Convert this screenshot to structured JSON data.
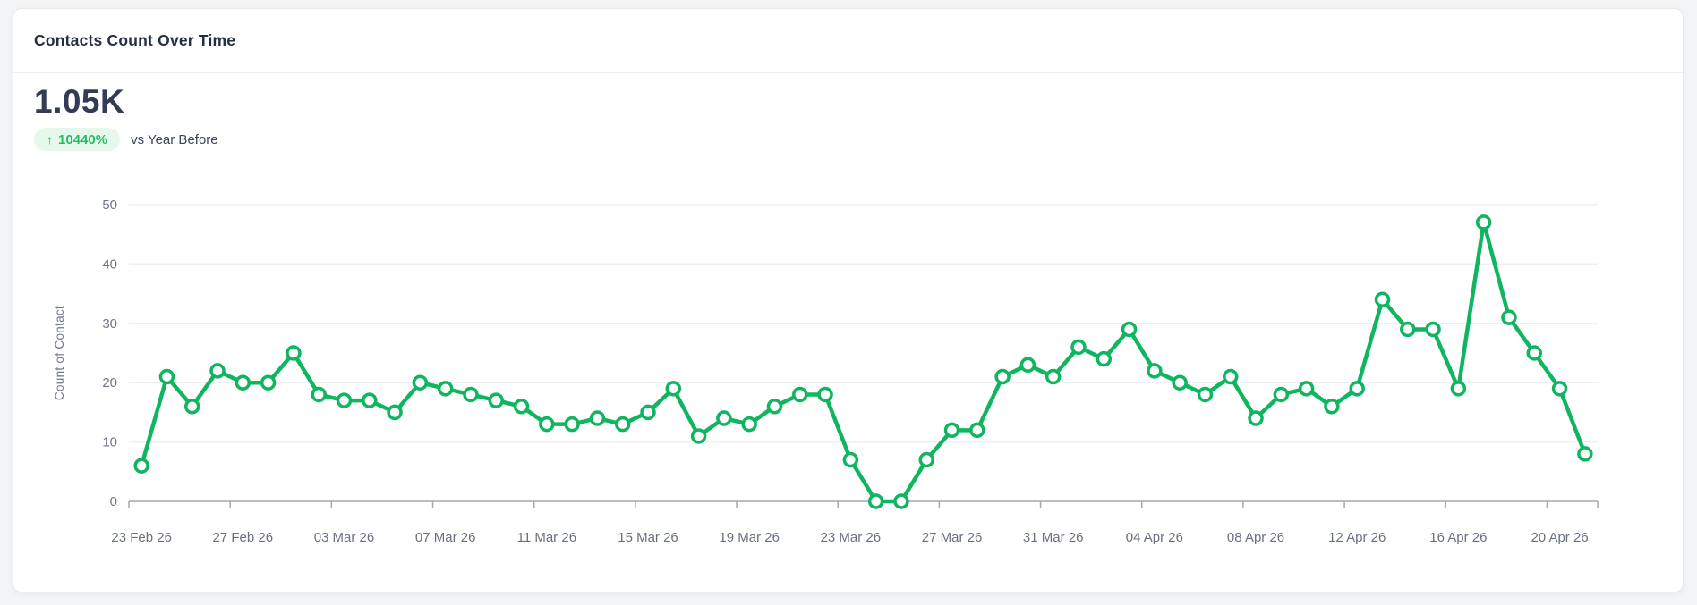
{
  "card": {
    "title": "Contacts Count Over Time",
    "stat": {
      "value": "1.05K",
      "badge": {
        "arrow": "↑",
        "text": "10440%"
      },
      "comparison": "vs Year Before"
    }
  },
  "chart_data": {
    "type": "line",
    "title": "Contacts Count Over Time",
    "xlabel": "",
    "ylabel": "Count of Contact",
    "ylim": [
      0,
      50
    ],
    "yticks": [
      0,
      10,
      20,
      30,
      40,
      50
    ],
    "x_tick_labels": [
      "23 Feb 26",
      "27 Feb 26",
      "03 Mar 26",
      "07 Mar 26",
      "11 Mar 26",
      "15 Mar 26",
      "19 Mar 26",
      "23 Mar 26",
      "27 Mar 26",
      "31 Mar 26",
      "04 Apr 26",
      "08 Apr 26",
      "12 Apr 26",
      "16 Apr 26",
      "20 Apr 26"
    ],
    "x_tick_interval": 4,
    "values": [
      6,
      21,
      16,
      22,
      20,
      20,
      25,
      18,
      17,
      17,
      15,
      20,
      19,
      18,
      17,
      16,
      13,
      13,
      14,
      13,
      15,
      19,
      11,
      14,
      13,
      16,
      18,
      18,
      7,
      0,
      0,
      7,
      12,
      12,
      21,
      23,
      21,
      26,
      24,
      29,
      22,
      20,
      18,
      21,
      14,
      18,
      19,
      16,
      19,
      34,
      29,
      29,
      19,
      47,
      31,
      25,
      19,
      8
    ],
    "legend": "none",
    "grid": "horizontal",
    "line_color": "#10b560",
    "marker_fill": "#ffffff",
    "colors": {
      "badge_bg": "#e5f8eb",
      "badge_text": "#28bd64",
      "grid": "#edeff4",
      "axis": "#a2a8b3",
      "tick_text": "#697082"
    }
  }
}
